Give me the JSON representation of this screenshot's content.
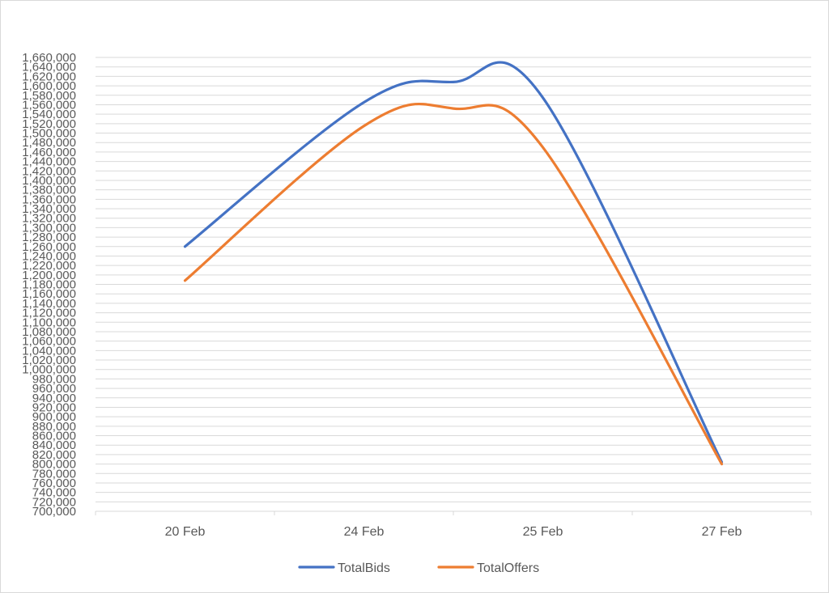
{
  "chart_data": {
    "type": "line",
    "title": "",
    "xlabel": "",
    "ylabel": "",
    "categories": [
      "20 Feb",
      "24 Feb",
      "25 Feb",
      "27 Feb"
    ],
    "ylim": [
      700000,
      1660000
    ],
    "ytick_step": 20000,
    "grid": true,
    "smooth": true,
    "legend": "bottom",
    "series": [
      {
        "name": "TotalBids",
        "color": "#4472c4",
        "points": [
          {
            "x": "20 Feb",
            "y": 1260000
          },
          {
            "x": "24 Feb",
            "y": 1565000
          },
          {
            "x": "25 Feb",
            "y": 1575000
          },
          {
            "x": "27 Feb",
            "y": 804000
          }
        ],
        "peak": {
          "x_between": [
            "24 Feb",
            "25 Feb"
          ],
          "y": 1608000
        }
      },
      {
        "name": "TotalOffers",
        "color": "#ed7d31",
        "points": [
          {
            "x": "20 Feb",
            "y": 1188000
          },
          {
            "x": "24 Feb",
            "y": 1515000
          },
          {
            "x": "25 Feb",
            "y": 1470000
          },
          {
            "x": "27 Feb",
            "y": 800000
          }
        ],
        "peak": {
          "x_between": [
            "24 Feb",
            "25 Feb"
          ],
          "y": 1552000
        }
      }
    ]
  }
}
